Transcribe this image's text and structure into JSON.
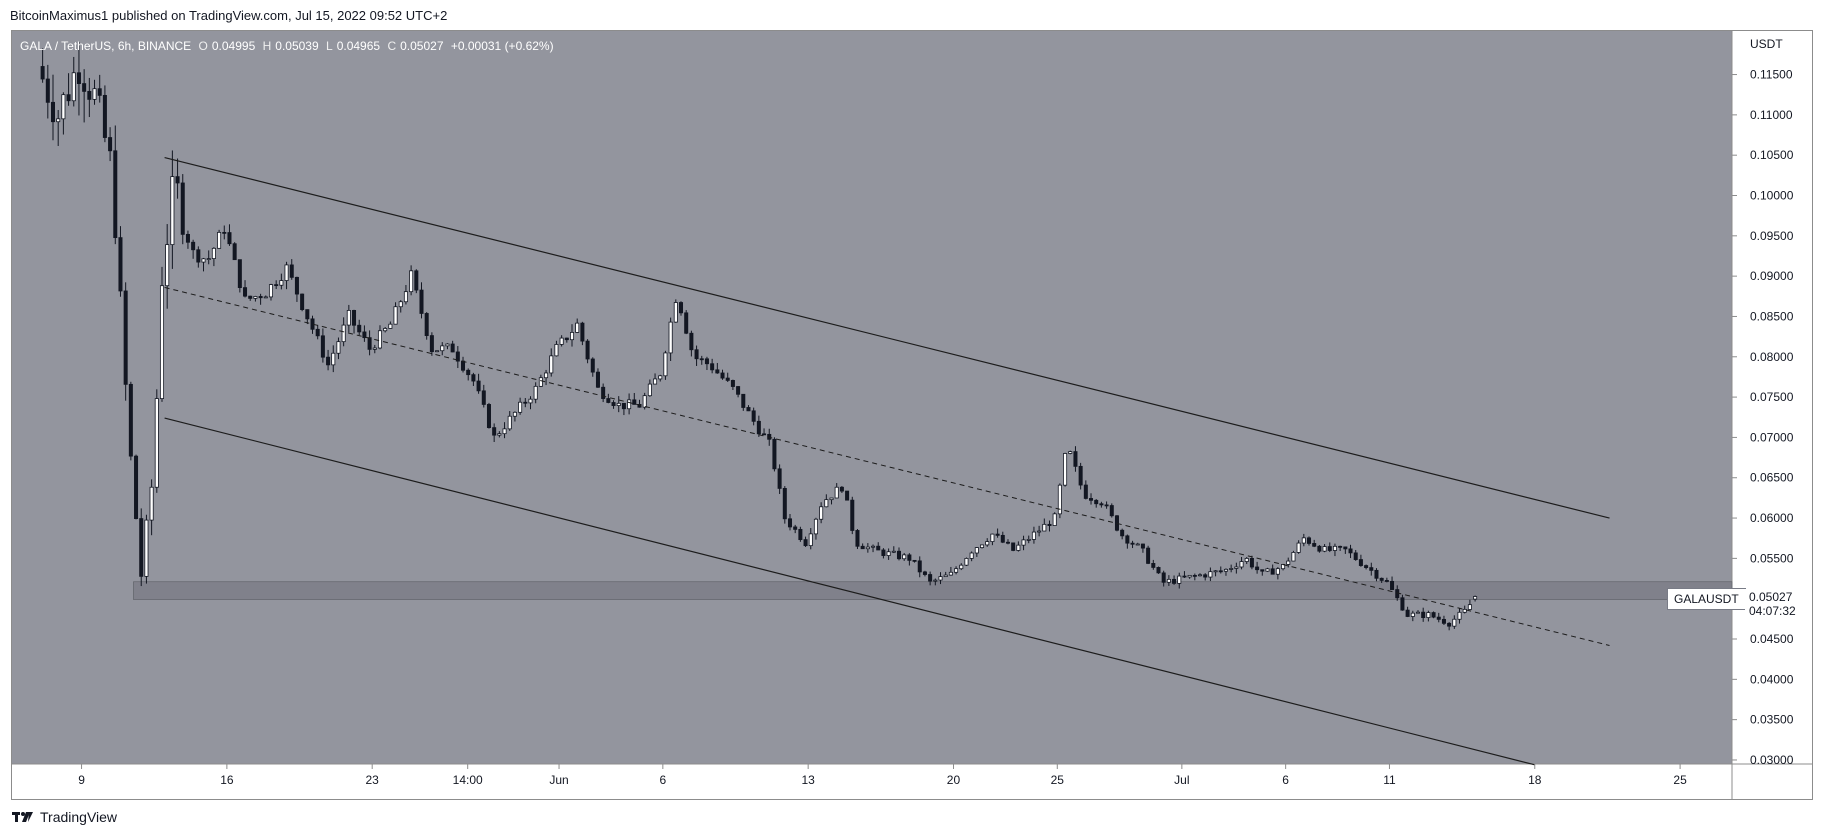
{
  "header": {
    "text": "BitcoinMaximus1 published on TradingView.com, Jul 15, 2022 09:52 UTC+2"
  },
  "legend": {
    "symbol": "GALA / TetherUS, 6h, BINANCE",
    "o_label": "O",
    "o_value": "0.04995",
    "h_label": "H",
    "h_value": "0.05039",
    "l_label": "L",
    "l_value": "0.04965",
    "c_label": "C",
    "c_value": "0.05027",
    "change": "+0.00031 (+0.62%)"
  },
  "last": {
    "symbol_label": "GALAUSDT",
    "price": "0.05027",
    "countdown": "04:07:32"
  },
  "footer": {
    "brand": "TradingView"
  },
  "colors": {
    "plot_bg": "#93959e",
    "candle": "#131722",
    "channel_line": "#1c1c1c",
    "support_zone": "#7c7e87",
    "axis_bg": "#ffffff",
    "text": "#131722"
  },
  "chart_data": {
    "type": "candlestick",
    "title": "",
    "yaxis_unit": "USDT",
    "y_ticks": [
      "0.11500",
      "0.11000",
      "0.10500",
      "0.10000",
      "0.09500",
      "0.09000",
      "0.08500",
      "0.08000",
      "0.07500",
      "0.07000",
      "0.06500",
      "0.06000",
      "0.05500",
      "0.05000",
      "0.04500",
      "0.04000",
      "0.03500",
      "0.03000"
    ],
    "ylim": [
      0.0295,
      0.1204
    ],
    "x_ticks": [
      {
        "label": "9",
        "day": 0
      },
      {
        "label": "16",
        "day": 7
      },
      {
        "label": "23",
        "day": 14
      },
      {
        "label": "14:00",
        "day": 18.6
      },
      {
        "label": "Jun",
        "day": 23
      },
      {
        "label": "6",
        "day": 28
      },
      {
        "label": "13",
        "day": 35
      },
      {
        "label": "20",
        "day": 42
      },
      {
        "label": "25",
        "day": 47
      },
      {
        "label": "Jul",
        "day": 53
      },
      {
        "label": "6",
        "day": 58
      },
      {
        "label": "11",
        "day": 63
      },
      {
        "label": "18",
        "day": 70
      },
      {
        "label": "25",
        "day": 77
      }
    ],
    "xlim": [
      -3.35,
      79.5
    ],
    "channel": {
      "upper": [
        {
          "day": 4.0,
          "price": 0.1047
        },
        {
          "day": 73.6,
          "price": 0.06
        }
      ],
      "lower": [
        {
          "day": 4.0,
          "price": 0.0724
        },
        {
          "day": 70.0,
          "price": 0.0294
        }
      ],
      "middle_dashed": [
        {
          "day": 4.0,
          "price": 0.0886
        },
        {
          "day": 73.6,
          "price": 0.0442
        }
      ]
    },
    "support_zone": {
      "from_day": 2.5,
      "to_day": 79.5,
      "low": 0.0499,
      "high": 0.0521
    },
    "anchors": [
      [
        -2.0,
        0.116
      ],
      [
        -1.0,
        0.11
      ],
      [
        0.0,
        0.1165
      ],
      [
        0.8,
        0.112
      ],
      [
        1.6,
        0.103
      ],
      [
        2.4,
        0.07
      ],
      [
        3.0,
        0.053
      ],
      [
        3.6,
        0.066
      ],
      [
        4.0,
        0.09
      ],
      [
        4.6,
        0.102
      ],
      [
        5.4,
        0.093
      ],
      [
        6.2,
        0.092
      ],
      [
        7.0,
        0.096
      ],
      [
        8.0,
        0.087
      ],
      [
        9.0,
        0.088
      ],
      [
        10.0,
        0.091
      ],
      [
        11.0,
        0.085
      ],
      [
        12.0,
        0.079
      ],
      [
        13.0,
        0.085
      ],
      [
        14.0,
        0.081
      ],
      [
        15.0,
        0.084
      ],
      [
        16.0,
        0.09
      ],
      [
        17.0,
        0.081
      ],
      [
        18.0,
        0.081
      ],
      [
        19.0,
        0.077
      ],
      [
        20.0,
        0.07
      ],
      [
        21.0,
        0.073
      ],
      [
        22.0,
        0.076
      ],
      [
        23.0,
        0.081
      ],
      [
        24.0,
        0.084
      ],
      [
        25.0,
        0.076
      ],
      [
        26.0,
        0.074
      ],
      [
        27.0,
        0.074
      ],
      [
        28.0,
        0.078
      ],
      [
        28.8,
        0.088
      ],
      [
        29.6,
        0.08
      ],
      [
        30.4,
        0.079
      ],
      [
        31.5,
        0.076
      ],
      [
        32.5,
        0.072
      ],
      [
        33.3,
        0.069
      ],
      [
        34.0,
        0.06
      ],
      [
        35.0,
        0.057
      ],
      [
        35.8,
        0.062
      ],
      [
        36.8,
        0.064
      ],
      [
        37.4,
        0.057
      ],
      [
        38.3,
        0.056
      ],
      [
        39.1,
        0.0555
      ],
      [
        40.0,
        0.055
      ],
      [
        41.0,
        0.052
      ],
      [
        42.0,
        0.053
      ],
      [
        43.0,
        0.056
      ],
      [
        44.0,
        0.058
      ],
      [
        45.0,
        0.056
      ],
      [
        46.0,
        0.058
      ],
      [
        47.0,
        0.06
      ],
      [
        47.6,
        0.069
      ],
      [
        48.4,
        0.063
      ],
      [
        49.3,
        0.062
      ],
      [
        50.2,
        0.058
      ],
      [
        51.2,
        0.056
      ],
      [
        52.2,
        0.052
      ],
      [
        53.2,
        0.0525
      ],
      [
        54.2,
        0.053
      ],
      [
        55.2,
        0.0535
      ],
      [
        56.2,
        0.055
      ],
      [
        57.0,
        0.053
      ],
      [
        58.0,
        0.054
      ],
      [
        59.0,
        0.0575
      ],
      [
        60.0,
        0.056
      ],
      [
        61.0,
        0.056
      ],
      [
        62.0,
        0.054
      ],
      [
        63.0,
        0.052
      ],
      [
        64.0,
        0.048
      ],
      [
        65.0,
        0.048
      ],
      [
        66.0,
        0.047
      ],
      [
        66.8,
        0.0485
      ],
      [
        67.2,
        0.05
      ]
    ],
    "last_candle": {
      "open": 0.04995,
      "high": 0.05039,
      "low": 0.04965,
      "close": 0.05027
    },
    "candles_per_day": 4
  }
}
